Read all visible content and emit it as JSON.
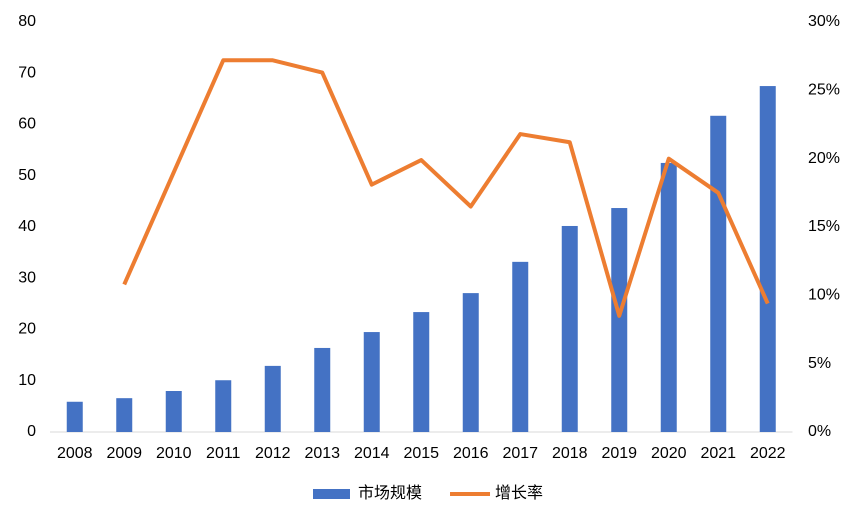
{
  "chart_data": {
    "type": "bar-line",
    "categories": [
      "2008",
      "2009",
      "2010",
      "2011",
      "2012",
      "2013",
      "2014",
      "2015",
      "2016",
      "2017",
      "2018",
      "2019",
      "2020",
      "2021",
      "2022"
    ],
    "series": [
      {
        "name": "市场规模",
        "type": "bar",
        "color": "#4472c4",
        "values": [
          5.9,
          6.6,
          8.0,
          10.1,
          12.9,
          16.4,
          19.5,
          23.4,
          27.1,
          33.2,
          40.2,
          43.7,
          52.5,
          61.7,
          67.5
        ]
      },
      {
        "name": "增长率",
        "type": "line",
        "axis": "y2",
        "color": "#ed7d31",
        "values": [
          null,
          10.8,
          19.0,
          27.2,
          27.2,
          26.3,
          18.1,
          19.9,
          16.5,
          21.8,
          21.2,
          8.5,
          20.0,
          17.5,
          9.4
        ]
      }
    ],
    "ylim": [
      0,
      80
    ],
    "yticks": [
      0,
      10,
      20,
      30,
      40,
      50,
      60,
      70,
      80
    ],
    "y2lim": [
      0,
      30
    ],
    "y2ticks": [
      {
        "value": 0,
        "label": "0%"
      },
      {
        "value": 5,
        "label": "5%"
      },
      {
        "value": 10,
        "label": "10%"
      },
      {
        "value": 15,
        "label": "15%"
      },
      {
        "value": 20,
        "label": "20%"
      },
      {
        "value": 25,
        "label": "25%"
      },
      {
        "value": 30,
        "label": "30%"
      }
    ],
    "legend": "bottom"
  }
}
